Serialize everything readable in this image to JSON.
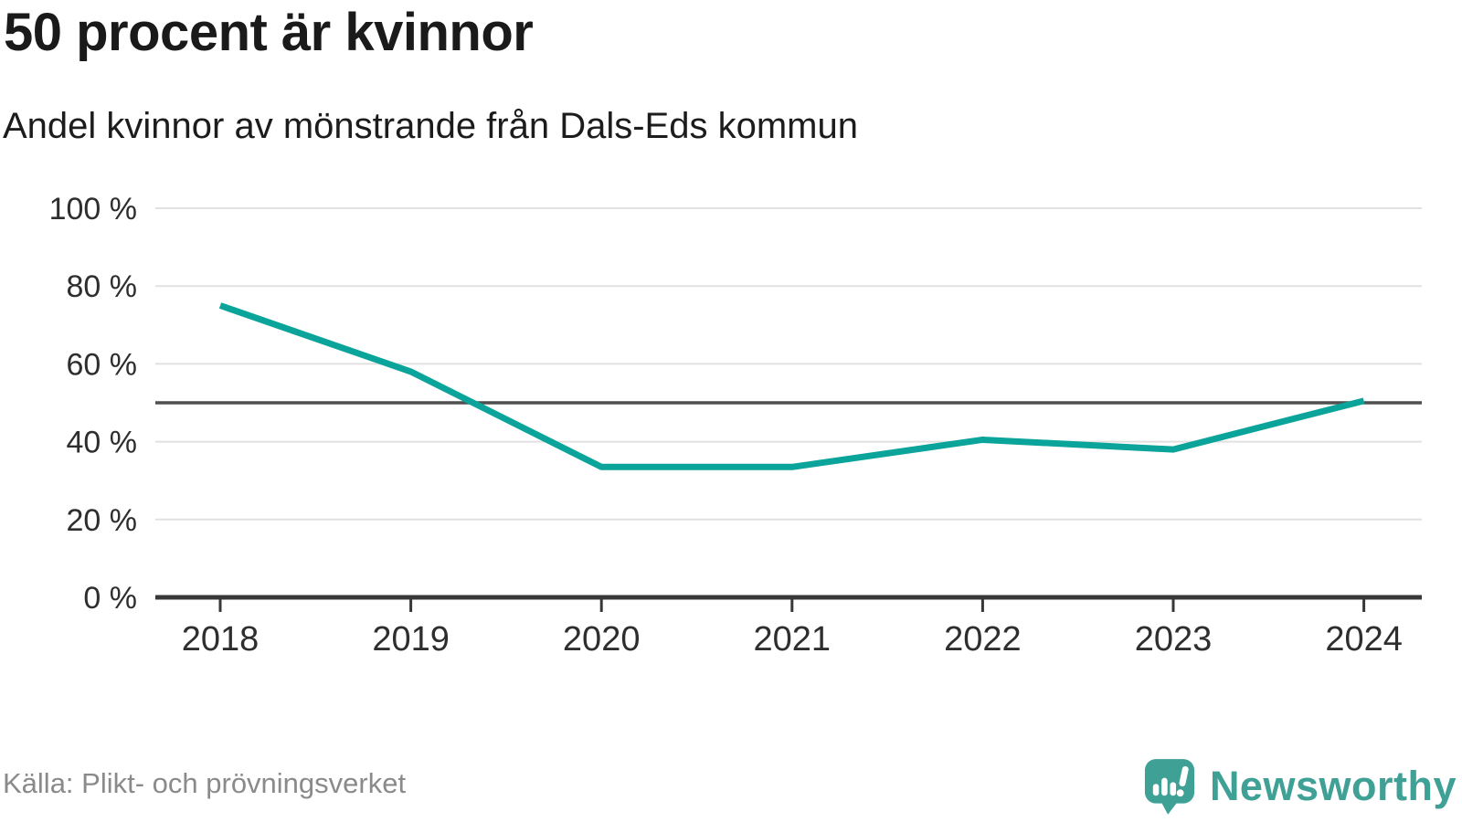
{
  "header": {
    "title": "50 procent är kvinnor",
    "subtitle": "Andel kvinnor av mönstrande från Dals-Eds kommun"
  },
  "footer": {
    "source": "Källa: Plikt- och prövningsverket",
    "brand": "Newsworthy"
  },
  "chart_data": {
    "type": "line",
    "x": [
      2018,
      2019,
      2020,
      2021,
      2022,
      2023,
      2024
    ],
    "series": [
      {
        "name": "Andel kvinnor av mönstrande",
        "values": [
          75,
          58,
          33.5,
          33.5,
          40.5,
          38,
          50.5
        ]
      }
    ],
    "title": "50 procent är kvinnor",
    "subtitle": "Andel kvinnor av mönstrande från Dals-Eds kommun",
    "xlabel": "",
    "ylabel": "",
    "ylim": [
      0,
      100
    ],
    "yticks": [
      0,
      20,
      40,
      60,
      80,
      100
    ],
    "ytick_suffix": " %",
    "reference_line_y": 50,
    "grid": true,
    "legend": false,
    "colors": {
      "line": "#0ba49a",
      "reference_line": "#4f4f4f",
      "gridline": "#e1e1e1",
      "axis": "#383838",
      "tick_label": "#2e2e2e",
      "source_text": "#8a8a8a",
      "brand": "#3fa096"
    }
  }
}
